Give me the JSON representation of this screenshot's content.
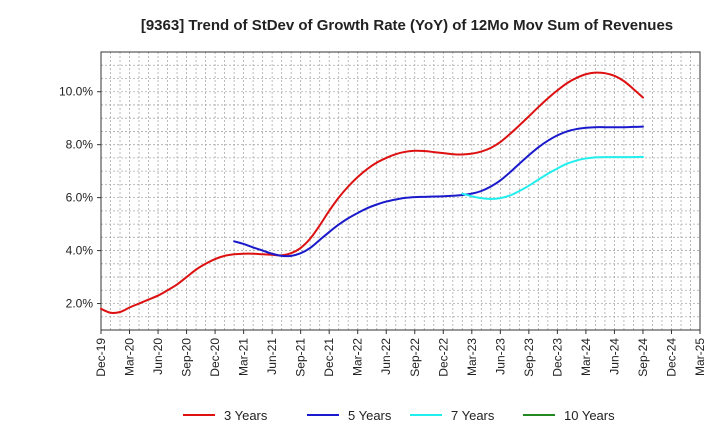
{
  "chart_data": {
    "type": "line",
    "title": "[9363]  Trend of StDev of Growth Rate (YoY) of 12Mo Mov Sum of Revenues",
    "xlabel": "",
    "ylabel": "",
    "x_tick_labels": [
      "Dec-19",
      "Mar-20",
      "Jun-20",
      "Sep-20",
      "Dec-20",
      "Mar-21",
      "Jun-21",
      "Sep-21",
      "Dec-21",
      "Mar-22",
      "Jun-22",
      "Sep-22",
      "Dec-22",
      "Mar-23",
      "Jun-23",
      "Sep-23",
      "Dec-23",
      "Mar-24",
      "Jun-24",
      "Sep-24",
      "Dec-24",
      "Mar-25"
    ],
    "y_tick_labels": [
      "2.0%",
      "4.0%",
      "6.0%",
      "8.0%",
      "10.0%"
    ],
    "y_ticks": [
      2,
      4,
      6,
      8,
      10
    ],
    "ylim": [
      1.0,
      11.5
    ],
    "xlim": [
      0,
      63
    ],
    "x_unit": "months since Dec-19",
    "grid": true,
    "legend_position": "bottom",
    "series": [
      {
        "name": "3 Years",
        "color": "#dd1111",
        "points": [
          [
            0,
            1.8
          ],
          [
            1,
            1.65
          ],
          [
            2,
            1.68
          ],
          [
            3,
            1.85
          ],
          [
            4,
            2.0
          ],
          [
            5,
            2.15
          ],
          [
            6,
            2.3
          ],
          [
            7,
            2.5
          ],
          [
            8,
            2.72
          ],
          [
            9,
            3.0
          ],
          [
            10,
            3.28
          ],
          [
            11,
            3.5
          ],
          [
            12,
            3.68
          ],
          [
            13,
            3.8
          ],
          [
            14,
            3.86
          ],
          [
            15,
            3.88
          ],
          [
            16,
            3.88
          ],
          [
            17,
            3.86
          ],
          [
            18,
            3.84
          ],
          [
            19,
            3.82
          ],
          [
            20,
            3.9
          ],
          [
            21,
            4.1
          ],
          [
            22,
            4.45
          ],
          [
            23,
            4.95
          ],
          [
            24,
            5.5
          ],
          [
            25,
            6.0
          ],
          [
            26,
            6.42
          ],
          [
            27,
            6.78
          ],
          [
            28,
            7.08
          ],
          [
            29,
            7.32
          ],
          [
            30,
            7.5
          ],
          [
            31,
            7.64
          ],
          [
            32,
            7.73
          ],
          [
            33,
            7.77
          ],
          [
            34,
            7.76
          ],
          [
            35,
            7.72
          ],
          [
            36,
            7.68
          ],
          [
            37,
            7.64
          ],
          [
            38,
            7.63
          ],
          [
            39,
            7.66
          ],
          [
            40,
            7.74
          ],
          [
            41,
            7.88
          ],
          [
            42,
            8.1
          ],
          [
            43,
            8.4
          ],
          [
            44,
            8.73
          ],
          [
            45,
            9.07
          ],
          [
            46,
            9.42
          ],
          [
            47,
            9.75
          ],
          [
            48,
            10.05
          ],
          [
            49,
            10.32
          ],
          [
            50,
            10.52
          ],
          [
            51,
            10.66
          ],
          [
            52,
            10.72
          ],
          [
            53,
            10.7
          ],
          [
            54,
            10.6
          ],
          [
            55,
            10.4
          ],
          [
            56,
            10.1
          ],
          [
            57,
            9.78
          ]
        ]
      },
      {
        "name": "5 Years",
        "color": "#1a1acc",
        "points": [
          [
            14,
            4.35
          ],
          [
            15,
            4.25
          ],
          [
            16,
            4.12
          ],
          [
            17,
            4.0
          ],
          [
            18,
            3.88
          ],
          [
            19,
            3.8
          ],
          [
            20,
            3.8
          ],
          [
            21,
            3.9
          ],
          [
            22,
            4.1
          ],
          [
            23,
            4.4
          ],
          [
            24,
            4.7
          ],
          [
            25,
            4.98
          ],
          [
            26,
            5.22
          ],
          [
            27,
            5.42
          ],
          [
            28,
            5.6
          ],
          [
            29,
            5.74
          ],
          [
            30,
            5.85
          ],
          [
            31,
            5.93
          ],
          [
            32,
            5.99
          ],
          [
            33,
            6.02
          ],
          [
            34,
            6.03
          ],
          [
            35,
            6.04
          ],
          [
            36,
            6.05
          ],
          [
            37,
            6.07
          ],
          [
            38,
            6.1
          ],
          [
            39,
            6.15
          ],
          [
            40,
            6.25
          ],
          [
            41,
            6.42
          ],
          [
            42,
            6.65
          ],
          [
            43,
            6.95
          ],
          [
            44,
            7.28
          ],
          [
            45,
            7.6
          ],
          [
            46,
            7.9
          ],
          [
            47,
            8.15
          ],
          [
            48,
            8.35
          ],
          [
            49,
            8.5
          ],
          [
            50,
            8.59
          ],
          [
            51,
            8.64
          ],
          [
            52,
            8.66
          ],
          [
            53,
            8.66
          ],
          [
            54,
            8.66
          ],
          [
            55,
            8.66
          ],
          [
            56,
            8.67
          ],
          [
            57,
            8.68
          ]
        ]
      },
      {
        "name": "7 Years",
        "color": "#22eeee",
        "points": [
          [
            38,
            6.15
          ],
          [
            39,
            6.05
          ],
          [
            40,
            5.98
          ],
          [
            41,
            5.95
          ],
          [
            42,
            5.98
          ],
          [
            43,
            6.08
          ],
          [
            44,
            6.25
          ],
          [
            45,
            6.45
          ],
          [
            46,
            6.68
          ],
          [
            47,
            6.9
          ],
          [
            48,
            7.1
          ],
          [
            49,
            7.28
          ],
          [
            50,
            7.4
          ],
          [
            51,
            7.48
          ],
          [
            52,
            7.52
          ],
          [
            53,
            7.53
          ],
          [
            54,
            7.53
          ],
          [
            55,
            7.53
          ],
          [
            56,
            7.53
          ],
          [
            57,
            7.54
          ]
        ]
      },
      {
        "name": "10 Years",
        "color": "#228822",
        "points": []
      }
    ]
  }
}
